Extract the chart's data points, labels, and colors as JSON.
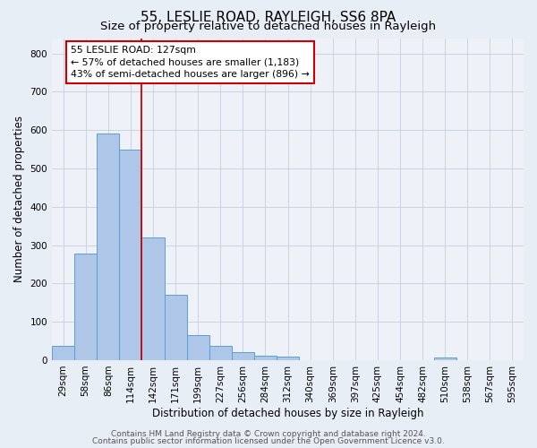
{
  "title": "55, LESLIE ROAD, RAYLEIGH, SS6 8PA",
  "subtitle": "Size of property relative to detached houses in Rayleigh",
  "xlabel": "Distribution of detached houses by size in Rayleigh",
  "ylabel": "Number of detached properties",
  "bin_labels": [
    "29sqm",
    "58sqm",
    "86sqm",
    "114sqm",
    "142sqm",
    "171sqm",
    "199sqm",
    "227sqm",
    "256sqm",
    "284sqm",
    "312sqm",
    "340sqm",
    "369sqm",
    "397sqm",
    "425sqm",
    "454sqm",
    "482sqm",
    "510sqm",
    "538sqm",
    "567sqm",
    "595sqm"
  ],
  "bar_heights": [
    38,
    278,
    592,
    550,
    320,
    170,
    65,
    38,
    20,
    12,
    10,
    0,
    0,
    0,
    0,
    0,
    0,
    8,
    0,
    0,
    0
  ],
  "bar_color": "#aec6e8",
  "bar_edge_color": "#5a9fd4",
  "property_line_color": "#cc0000",
  "annotation_text": "55 LESLIE ROAD: 127sqm\n← 57% of detached houses are smaller (1,183)\n43% of semi-detached houses are larger (896) →",
  "annotation_box_color": "#ffffff",
  "annotation_box_edge": "#cc0000",
  "ylim": [
    0,
    840
  ],
  "yticks": [
    0,
    100,
    200,
    300,
    400,
    500,
    600,
    700,
    800
  ],
  "footer_line1": "Contains HM Land Registry data © Crown copyright and database right 2024.",
  "footer_line2": "Contains public sector information licensed under the Open Government Licence v3.0.",
  "bg_color": "#e8eef5",
  "plot_bg_color": "#eef2f8",
  "title_fontsize": 11,
  "subtitle_fontsize": 9.5,
  "tick_fontsize": 7.5,
  "ylabel_fontsize": 8.5,
  "xlabel_fontsize": 8.5,
  "footer_fontsize": 6.5,
  "annotation_fontsize": 7.8
}
